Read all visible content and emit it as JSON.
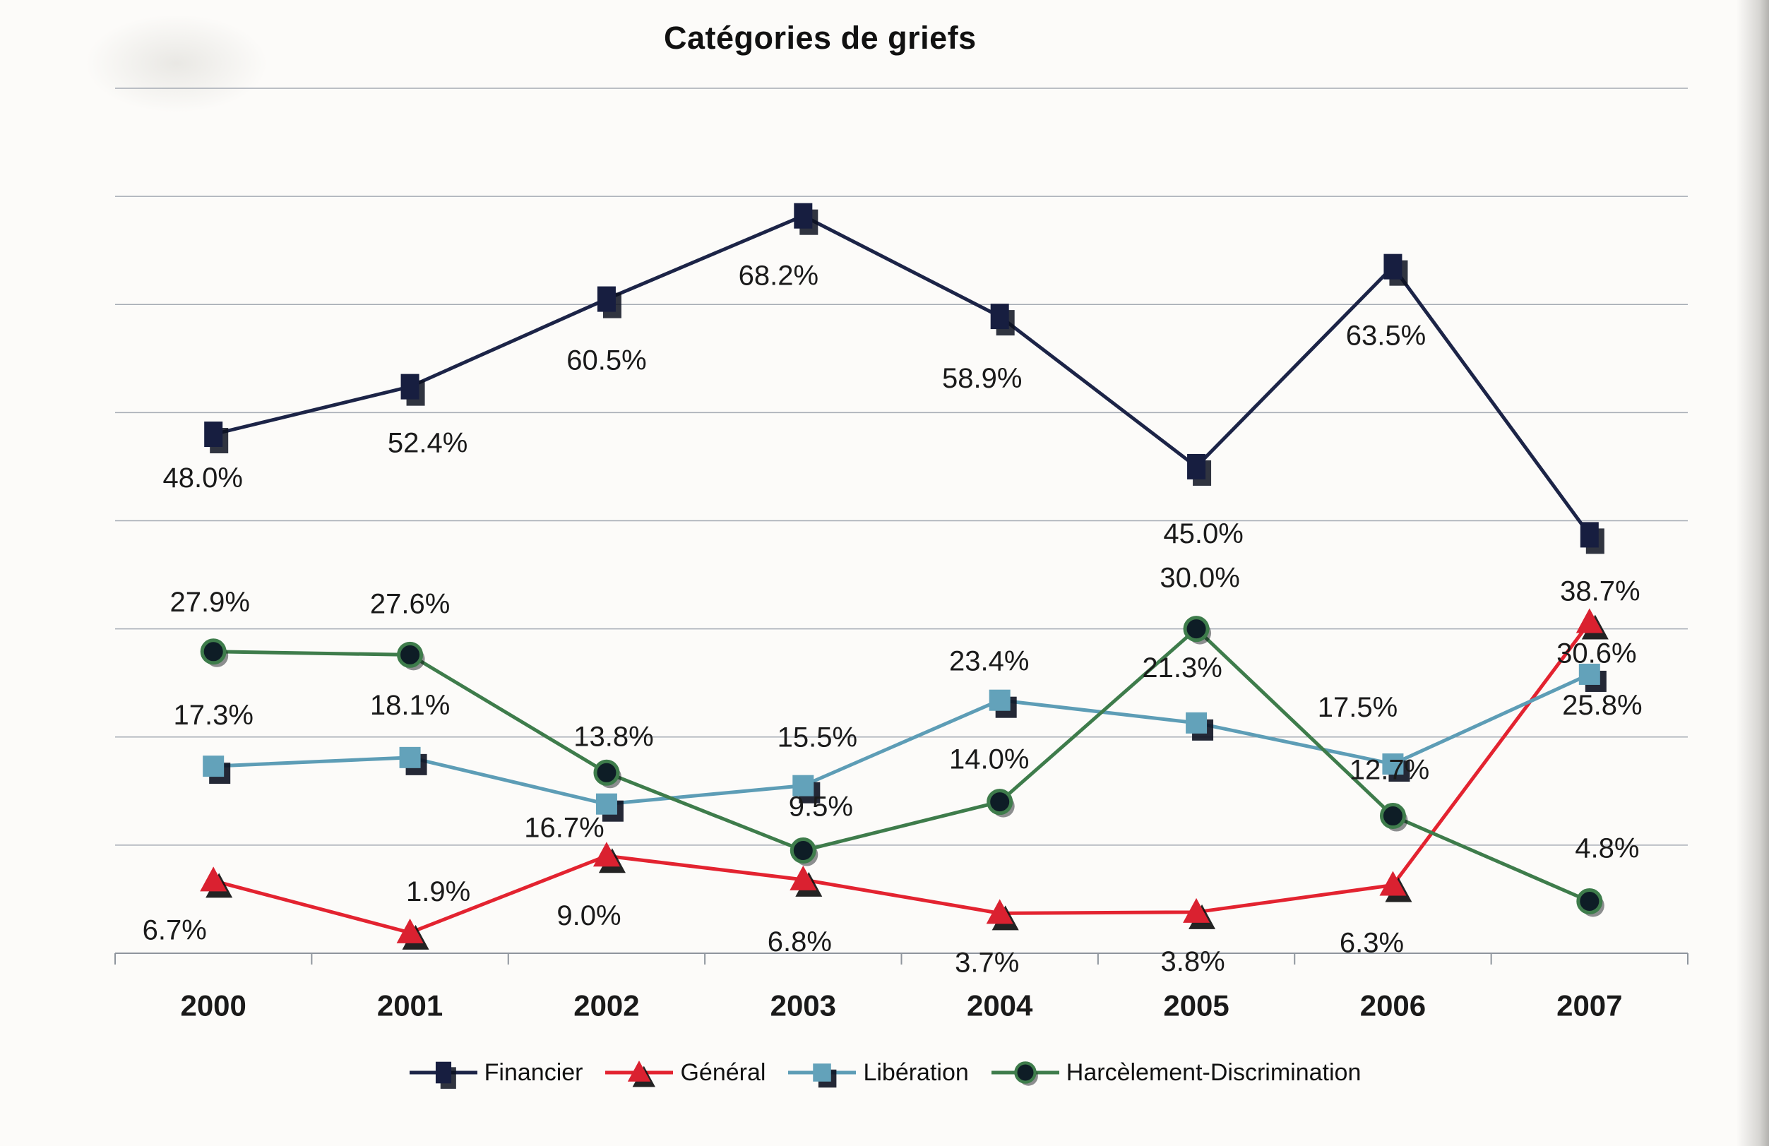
{
  "chart_data": {
    "type": "line",
    "title": "Catégories de griefs",
    "categories": [
      "2000",
      "2001",
      "2002",
      "2003",
      "2004",
      "2005",
      "2006",
      "2007"
    ],
    "xlabel": "",
    "ylabel": "",
    "ylim": [
      0,
      80
    ],
    "grid_step": 10,
    "grid": true,
    "y_tick_labels_visible": false,
    "value_format": "percent",
    "legend_position": "bottom",
    "series": [
      {
        "name": "Financier",
        "color": "#1c2447",
        "marker": "square-tall",
        "marker_color": "#171e40",
        "values": [
          48.0,
          52.4,
          60.5,
          68.2,
          58.9,
          45.0,
          63.5,
          38.7
        ],
        "labels": [
          "48.0%",
          "52.4%",
          "60.5%",
          "68.2%",
          "58.9%",
          "45.0%",
          "63.5%",
          "38.7%"
        ],
        "label_offsets": [
          [
            -15,
            62
          ],
          [
            25,
            80
          ],
          [
            0,
            87
          ],
          [
            -35,
            85
          ],
          [
            -25,
            88
          ],
          [
            10,
            95
          ],
          [
            -10,
            98
          ],
          [
            15,
            80
          ]
        ]
      },
      {
        "name": "Général",
        "color": "#e32330",
        "marker": "triangle",
        "marker_color": "#da2130",
        "values": [
          6.7,
          1.9,
          9.0,
          6.8,
          3.7,
          3.8,
          6.3,
          30.6
        ],
        "labels": [
          "6.7%",
          "1.9%",
          "9.0%",
          "6.8%",
          "3.7%",
          "3.8%",
          "6.3%",
          "30.6%"
        ],
        "label_offsets": [
          [
            -55,
            70
          ],
          [
            40,
            -58
          ],
          [
            -25,
            85
          ],
          [
            -5,
            88
          ],
          [
            -18,
            70
          ],
          [
            -5,
            70
          ],
          [
            -30,
            82
          ],
          [
            10,
            44
          ]
        ]
      },
      {
        "name": "Libération",
        "color": "#5d9db6",
        "marker": "square",
        "marker_color": "#63a2ba",
        "values": [
          17.3,
          18.1,
          13.8,
          15.5,
          23.4,
          21.3,
          17.5,
          25.8
        ],
        "labels": [
          "17.3%",
          "18.1%",
          "13.8%",
          "15.5%",
          "23.4%",
          "21.3%",
          "17.5%",
          "25.8%"
        ],
        "label_offsets": [
          [
            0,
            -72
          ],
          [
            0,
            -74
          ],
          [
            10,
            -95
          ],
          [
            20,
            -68
          ],
          [
            -15,
            -55
          ],
          [
            -20,
            -78
          ],
          [
            -50,
            -80
          ],
          [
            18,
            44
          ]
        ]
      },
      {
        "name": "Harcèlement-Discrimination",
        "color": "#3e7c4b",
        "marker": "circle",
        "marker_color": "#0e1d26",
        "values": [
          27.9,
          27.6,
          16.7,
          9.5,
          14.0,
          30.0,
          12.7,
          4.8
        ],
        "labels": [
          "27.9%",
          "27.6%",
          "16.7%",
          "9.5%",
          "14.0%",
          "30.0%",
          "12.7%",
          "4.8%"
        ],
        "label_offsets": [
          [
            -5,
            -70
          ],
          [
            0,
            -72
          ],
          [
            -60,
            78
          ],
          [
            25,
            -62
          ],
          [
            -15,
            -60
          ],
          [
            5,
            -72
          ],
          [
            -5,
            -65
          ],
          [
            25,
            -75
          ]
        ]
      }
    ]
  },
  "style": {
    "gridline_color": "#a5abb4",
    "axis_color": "#8f959d",
    "label_color": "#1a1a1a",
    "background": "#fcfbf9"
  }
}
